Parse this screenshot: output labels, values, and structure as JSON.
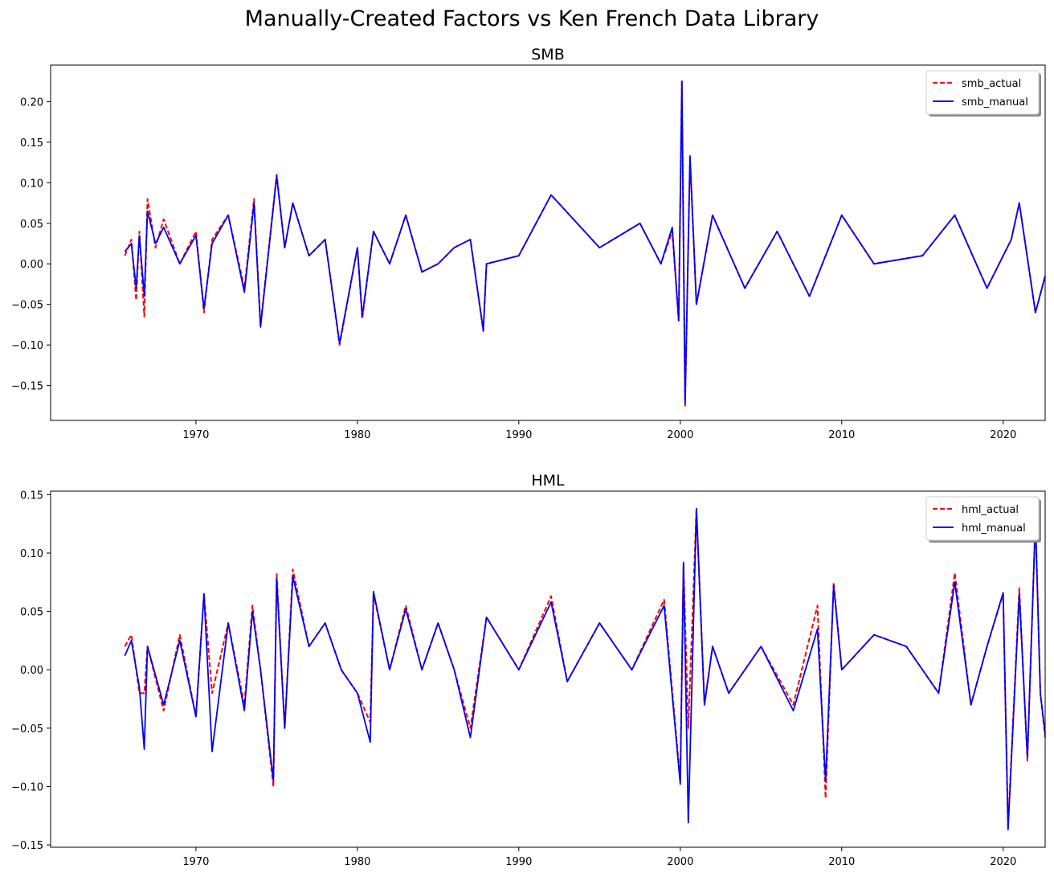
{
  "suptitle": "Manually-Created Factors vs Ken French Data Library",
  "colors": {
    "actual": "#ff0000",
    "manual": "#0000ff"
  },
  "chart_data": [
    {
      "type": "line",
      "title": "SMB",
      "xlim": [
        1961,
        2022.6
      ],
      "ylim": [
        -0.193,
        0.245
      ],
      "xticks": [
        1970,
        1980,
        1990,
        2000,
        2010,
        2020
      ],
      "yticks": [
        -0.15,
        -0.1,
        -0.05,
        0.0,
        0.05,
        0.1,
        0.15,
        0.2
      ],
      "ytick_labels": [
        "−0.15",
        "−0.10",
        "−0.05",
        "0.00",
        "0.05",
        "0.10",
        "0.15",
        "0.20"
      ],
      "legend_position": "top-right",
      "series": [
        {
          "name": "smb_actual",
          "style": "dashed",
          "x": [
            1965.6,
            1966.0,
            1966.3,
            1966.5,
            1966.8,
            1967.0,
            1967.5,
            1968.0,
            1969.0,
            1970.0,
            1970.5,
            1971.0,
            1972.0,
            1973.0,
            1973.6,
            1974.0,
            1975.0,
            1975.5,
            1976.0,
            1977.0,
            1978.0,
            1978.9,
            1980.0,
            1980.3,
            1981.0,
            1982.0,
            1983.0,
            1984.0,
            1985.0,
            1986.0,
            1987.0,
            1987.8,
            1988.0,
            1990.0,
            1992.0,
            1995.0,
            1997.5,
            1998.8,
            1999.5,
            1999.9,
            2000.1,
            2000.3,
            2000.6,
            2001.0,
            2002.0,
            2004.0,
            2006.0,
            2008.0,
            2010.0,
            2012.0,
            2015.0,
            2017.0,
            2019.0,
            2020.5,
            2021.0,
            2022.0,
            2022.6
          ],
          "y": [
            0.01,
            0.03,
            -0.045,
            0.04,
            -0.065,
            0.08,
            0.02,
            0.055,
            0.0,
            0.04,
            -0.06,
            0.03,
            0.06,
            -0.03,
            0.08,
            -0.075,
            0.11,
            0.02,
            0.075,
            0.01,
            0.03,
            -0.1,
            0.02,
            -0.068,
            0.04,
            0.0,
            0.06,
            -0.01,
            0.0,
            0.02,
            0.03,
            -0.083,
            0.0,
            0.01,
            0.085,
            0.02,
            0.05,
            0.0,
            0.04,
            -0.07,
            0.225,
            -0.175,
            0.13,
            -0.05,
            0.06,
            -0.03,
            0.04,
            -0.04,
            0.06,
            0.0,
            0.01,
            0.06,
            -0.03,
            0.03,
            0.075,
            -0.06,
            -0.015
          ]
        },
        {
          "name": "smb_manual",
          "style": "solid",
          "x": [
            1965.6,
            1966.0,
            1966.3,
            1966.5,
            1966.8,
            1967.0,
            1967.5,
            1968.0,
            1969.0,
            1970.0,
            1970.5,
            1971.0,
            1972.0,
            1973.0,
            1973.6,
            1974.0,
            1975.0,
            1975.5,
            1976.0,
            1977.0,
            1978.0,
            1978.9,
            1980.0,
            1980.3,
            1981.0,
            1982.0,
            1983.0,
            1984.0,
            1985.0,
            1986.0,
            1987.0,
            1987.8,
            1988.0,
            1990.0,
            1992.0,
            1995.0,
            1997.5,
            1998.8,
            1999.5,
            1999.9,
            2000.1,
            2000.3,
            2000.6,
            2001.0,
            2002.0,
            2004.0,
            2006.0,
            2008.0,
            2010.0,
            2012.0,
            2015.0,
            2017.0,
            2019.0,
            2020.5,
            2021.0,
            2022.0,
            2022.6
          ],
          "y": [
            0.015,
            0.025,
            -0.03,
            0.035,
            -0.04,
            0.065,
            0.025,
            0.045,
            0.0,
            0.035,
            -0.055,
            0.025,
            0.06,
            -0.035,
            0.075,
            -0.078,
            0.108,
            0.02,
            0.075,
            0.01,
            0.03,
            -0.098,
            0.02,
            -0.065,
            0.04,
            0.0,
            0.06,
            -0.01,
            0.0,
            0.02,
            0.03,
            -0.082,
            0.0,
            0.01,
            0.085,
            0.02,
            0.05,
            0.0,
            0.045,
            -0.07,
            0.225,
            -0.172,
            0.133,
            -0.05,
            0.06,
            -0.03,
            0.04,
            -0.04,
            0.06,
            0.0,
            0.01,
            0.06,
            -0.03,
            0.03,
            0.075,
            -0.06,
            -0.015
          ]
        }
      ]
    },
    {
      "type": "line",
      "title": "HML",
      "xlim": [
        1961,
        2022.6
      ],
      "ylim": [
        -0.152,
        0.153
      ],
      "xticks": [
        1970,
        1980,
        1990,
        2000,
        2010,
        2020
      ],
      "yticks": [
        -0.15,
        -0.1,
        -0.05,
        0.0,
        0.05,
        0.1,
        0.15
      ],
      "ytick_labels": [
        "−0.15",
        "−0.10",
        "−0.05",
        "0.00",
        "0.05",
        "0.10",
        "0.15"
      ],
      "legend_position": "top-right",
      "series": [
        {
          "name": "hml_actual",
          "style": "dashed",
          "x": [
            1965.6,
            1966.0,
            1966.5,
            1966.8,
            1967.0,
            1968.0,
            1969.0,
            1970.0,
            1970.5,
            1971.0,
            1972.0,
            1973.0,
            1973.5,
            1974.0,
            1974.8,
            1975.0,
            1975.5,
            1976.0,
            1977.0,
            1978.0,
            1979.0,
            1980.0,
            1980.8,
            1981.0,
            1982.0,
            1983.0,
            1984.0,
            1985.0,
            1986.0,
            1987.0,
            1988.0,
            1990.0,
            1992.0,
            1993.0,
            1995.0,
            1997.0,
            1999.0,
            2000.0,
            2000.2,
            2000.5,
            2001.0,
            2001.5,
            2002.0,
            2003.0,
            2005.0,
            2007.0,
            2008.5,
            2009.0,
            2009.5,
            2010.0,
            2012.0,
            2014.0,
            2016.0,
            2017.0,
            2018.0,
            2019.0,
            2020.0,
            2020.3,
            2021.0,
            2021.5,
            2022.0,
            2022.3,
            2022.6
          ],
          "y": [
            0.02,
            0.03,
            -0.02,
            -0.02,
            0.02,
            -0.035,
            0.03,
            -0.04,
            0.065,
            -0.02,
            0.04,
            -0.03,
            0.055,
            0.0,
            -0.1,
            0.082,
            -0.05,
            0.086,
            0.02,
            0.04,
            0.0,
            -0.02,
            -0.045,
            0.065,
            0.0,
            0.055,
            0.0,
            0.04,
            0.0,
            -0.05,
            0.045,
            0.0,
            0.063,
            -0.01,
            0.04,
            0.0,
            0.06,
            -0.095,
            0.09,
            -0.05,
            0.138,
            -0.03,
            0.02,
            -0.02,
            0.02,
            -0.03,
            0.055,
            -0.11,
            0.075,
            0.0,
            0.03,
            0.02,
            -0.02,
            0.083,
            -0.03,
            0.02,
            0.065,
            -0.135,
            0.07,
            -0.078,
            0.13,
            -0.02,
            -0.058
          ]
        },
        {
          "name": "hml_manual",
          "style": "solid",
          "x": [
            1965.6,
            1966.0,
            1966.5,
            1966.8,
            1967.0,
            1968.0,
            1969.0,
            1970.0,
            1970.5,
            1971.0,
            1972.0,
            1973.0,
            1973.5,
            1974.0,
            1974.8,
            1975.0,
            1975.5,
            1976.0,
            1977.0,
            1978.0,
            1979.0,
            1980.0,
            1980.8,
            1981.0,
            1982.0,
            1983.0,
            1984.0,
            1985.0,
            1986.0,
            1987.0,
            1988.0,
            1990.0,
            1992.0,
            1993.0,
            1995.0,
            1997.0,
            1999.0,
            2000.0,
            2000.2,
            2000.5,
            2001.0,
            2001.5,
            2002.0,
            2003.0,
            2005.0,
            2007.0,
            2008.5,
            2009.0,
            2009.5,
            2010.0,
            2012.0,
            2014.0,
            2016.0,
            2017.0,
            2018.0,
            2019.0,
            2020.0,
            2020.3,
            2021.0,
            2021.5,
            2022.0,
            2022.3,
            2022.6
          ],
          "y": [
            0.012,
            0.025,
            -0.015,
            -0.068,
            0.02,
            -0.03,
            0.025,
            -0.04,
            0.065,
            -0.07,
            0.04,
            -0.035,
            0.05,
            0.0,
            -0.095,
            0.078,
            -0.05,
            0.08,
            0.02,
            0.04,
            0.0,
            -0.02,
            -0.062,
            0.067,
            0.0,
            0.052,
            0.0,
            0.04,
            0.0,
            -0.058,
            0.045,
            0.0,
            0.058,
            -0.01,
            0.04,
            0.0,
            0.055,
            -0.098,
            0.092,
            -0.131,
            0.138,
            -0.03,
            0.02,
            -0.02,
            0.02,
            -0.035,
            0.035,
            -0.095,
            0.072,
            0.0,
            0.03,
            0.02,
            -0.02,
            0.075,
            -0.03,
            0.02,
            0.066,
            -0.137,
            0.065,
            -0.075,
            0.128,
            -0.02,
            -0.055
          ]
        }
      ]
    }
  ]
}
